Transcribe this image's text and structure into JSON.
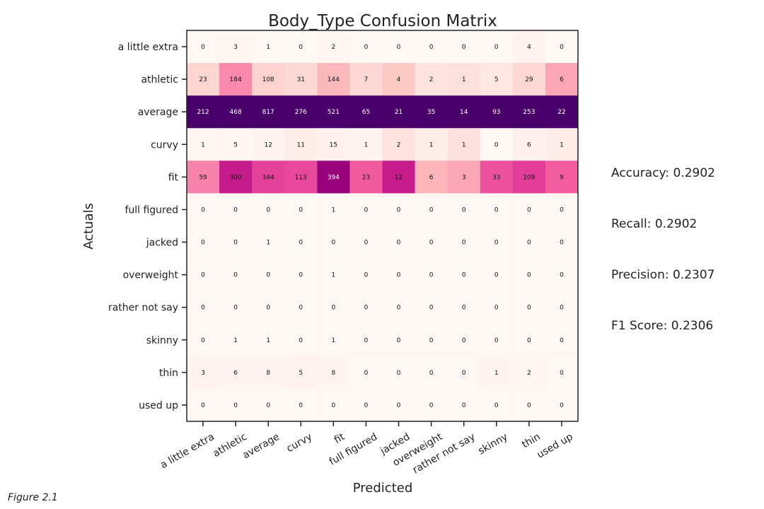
{
  "chart_data": {
    "type": "heatmap",
    "title": "Body_Type Confusion Matrix",
    "xlabel": "Predicted",
    "ylabel": "Actuals",
    "x_categories": [
      "a little extra",
      "athletic",
      "average",
      "curvy",
      "fit",
      "full figured",
      "jacked",
      "overweight",
      "rather not say",
      "skinny",
      "thin",
      "used up"
    ],
    "y_categories": [
      "a little extra",
      "athletic",
      "average",
      "curvy",
      "fit",
      "full figured",
      "jacked",
      "overweight",
      "rather not say",
      "skinny",
      "thin",
      "used up"
    ],
    "values": [
      [
        0,
        3,
        1,
        0,
        2,
        0,
        0,
        0,
        0,
        0,
        4,
        0
      ],
      [
        23,
        184,
        108,
        31,
        144,
        7,
        4,
        2,
        1,
        5,
        29,
        6
      ],
      [
        212,
        468,
        817,
        276,
        521,
        65,
        21,
        35,
        14,
        93,
        253,
        22
      ],
      [
        1,
        5,
        12,
        11,
        15,
        1,
        2,
        1,
        1,
        0,
        6,
        1
      ],
      [
        59,
        300,
        344,
        113,
        394,
        23,
        12,
        6,
        3,
        33,
        109,
        9
      ],
      [
        0,
        0,
        0,
        0,
        1,
        0,
        0,
        0,
        0,
        0,
        0,
        0
      ],
      [
        0,
        0,
        1,
        0,
        0,
        0,
        0,
        0,
        0,
        0,
        0,
        0
      ],
      [
        0,
        0,
        0,
        0,
        1,
        0,
        0,
        0,
        0,
        0,
        0,
        0
      ],
      [
        0,
        0,
        0,
        0,
        0,
        0,
        0,
        0,
        0,
        0,
        0,
        0
      ],
      [
        0,
        1,
        1,
        0,
        1,
        0,
        0,
        0,
        0,
        0,
        0,
        0
      ],
      [
        3,
        6,
        8,
        5,
        8,
        0,
        0,
        0,
        0,
        1,
        2,
        0
      ],
      [
        0,
        0,
        0,
        0,
        0,
        0,
        0,
        0,
        0,
        0,
        0,
        0
      ]
    ],
    "normalization": "column",
    "colormap": "RdPu",
    "grid": false
  },
  "metrics": {
    "accuracy": "Accuracy: 0.2902",
    "recall": "Recall: 0.2902",
    "precision": "Precision: 0.2307",
    "f1": "F1 Score: 0.2306"
  },
  "caption": "Figure 2.1"
}
